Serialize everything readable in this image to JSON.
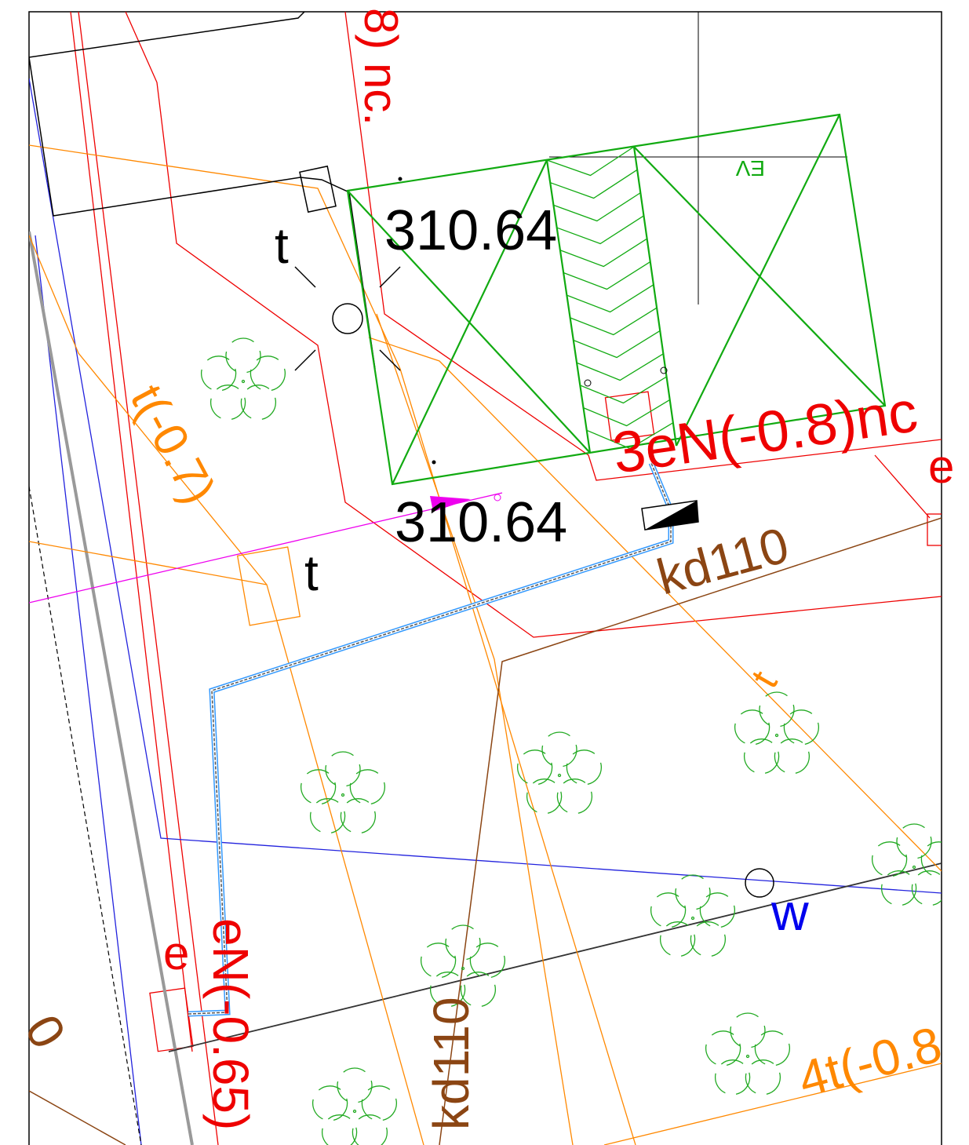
{
  "labels": [
    "8) nc.",
    "310.64",
    "310.64",
    "t",
    "t",
    "t(-0.7)",
    "3eN(-0.8)nc",
    "e",
    "kd110",
    "t",
    "w",
    "e",
    "eN(-0.65)",
    "kd110",
    "4t(-0.8",
    "0",
    "EV"
  ]
}
